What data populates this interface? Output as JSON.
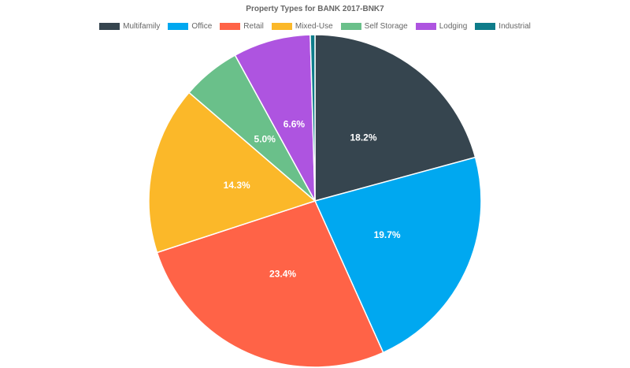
{
  "chart_data": {
    "type": "pie",
    "title": "Property Types for BANK 2017-BNK7",
    "legend_position": "top",
    "categories": [
      "Multifamily",
      "Office",
      "Retail",
      "Mixed-Use",
      "Self Storage",
      "Lodging",
      "Industrial"
    ],
    "values": [
      18.2,
      19.7,
      23.4,
      14.3,
      5.0,
      6.6,
      0.4
    ],
    "data_labels": [
      "18.2%",
      "19.7%",
      "23.4%",
      "14.3%",
      "5.0%",
      "6.6%",
      ""
    ],
    "colors": [
      "#36454f",
      "#00a8f0",
      "#ff6347",
      "#fbb829",
      "#6ac08a",
      "#ae54e0",
      "#0e7c8a"
    ]
  }
}
